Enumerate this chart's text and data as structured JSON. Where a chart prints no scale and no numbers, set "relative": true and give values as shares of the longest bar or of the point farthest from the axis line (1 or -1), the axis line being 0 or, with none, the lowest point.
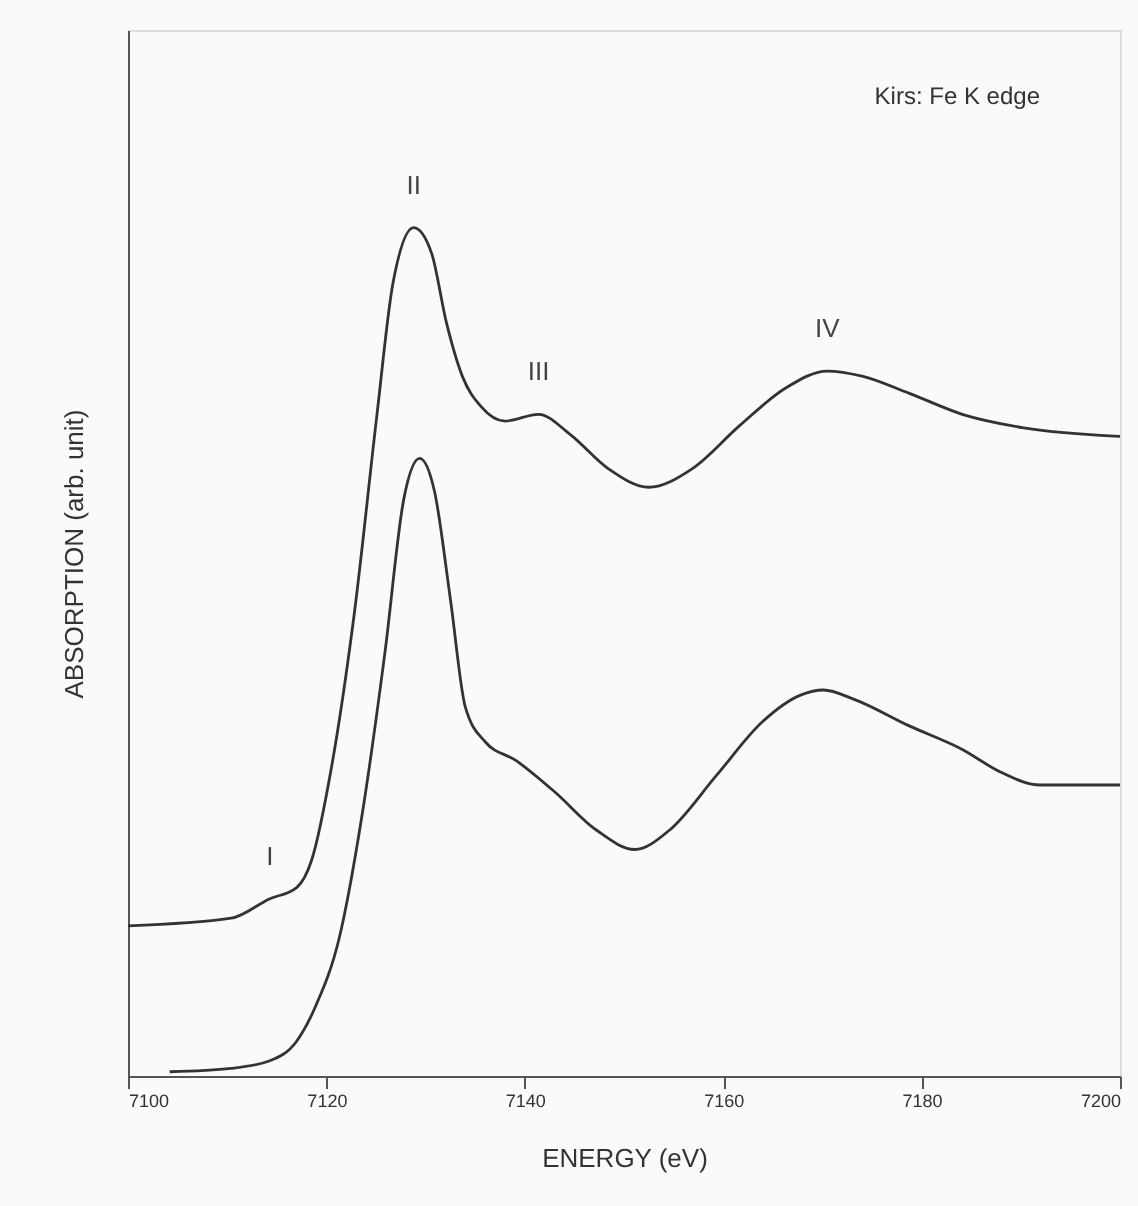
{
  "chart_data": {
    "type": "line",
    "relative": true,
    "xlabel": "ENERGY (eV)",
    "ylabel": "ABSORPTION (arb. unit)",
    "xlim": [
      7100,
      7200
    ],
    "xticks": [
      7100,
      7120,
      7140,
      7160,
      7180,
      7200
    ],
    "grid": false,
    "marker": "none",
    "line_style": "solid",
    "series": [
      {
        "color": "#333333",
        "x": [
          7100,
          7110.4,
          7114.3,
          7117,
          7118.5,
          7120.5,
          7122.8,
          7125.1,
          7126.7,
          7128.8,
          7130.6,
          7132.1,
          7133.7,
          7135.6,
          7138,
          7141.4,
          7144.5,
          7148.4,
          7152.5,
          7156.9,
          7161.6,
          7166.3,
          7170.5,
          7174,
          7178.7,
          7184.1,
          7190.3,
          7200
        ],
        "values": [
          0.177,
          0.186,
          0.209,
          0.222,
          0.254,
          0.363,
          0.544,
          0.78,
          0.934,
          1.0,
          0.97,
          0.888,
          0.825,
          0.789,
          0.772,
          0.78,
          0.757,
          0.716,
          0.694,
          0.716,
          0.766,
          0.811,
          0.831,
          0.825,
          0.805,
          0.78,
          0.764,
          0.754
        ]
      },
      {
        "color": "#333333",
        "x": [
          7104.2,
          7110.4,
          7114.3,
          7117,
          7118.9,
          7121.3,
          7123.6,
          7125.9,
          7127.8,
          7129.4,
          7130.9,
          7132.5,
          7134,
          7136,
          7139.1,
          7143,
          7147.2,
          7151.1,
          7154.6,
          7159.3,
          7163.9,
          7167.8,
          7170.1,
          7173.2,
          7178.7,
          7184.1,
          7188,
          7191.9,
          7200
        ],
        "values": [
          0.005,
          0.009,
          0.018,
          0.041,
          0.082,
          0.163,
          0.308,
          0.499,
          0.68,
          0.728,
          0.689,
          0.562,
          0.435,
          0.394,
          0.372,
          0.335,
          0.29,
          0.267,
          0.29,
          0.354,
          0.417,
          0.449,
          0.455,
          0.444,
          0.413,
          0.385,
          0.358,
          0.343,
          0.343
        ]
      }
    ],
    "annotations": [
      "Kirs: Fe K edge",
      {
        "text": "I",
        "x": 7114.3,
        "y": 0.209
      },
      {
        "text": "II",
        "x": 7128.8,
        "y": 1.0
      },
      {
        "text": "III",
        "x": 7141.4,
        "y": 0.78
      },
      {
        "text": "IV",
        "x": 7170.5,
        "y": 0.831
      }
    ]
  }
}
